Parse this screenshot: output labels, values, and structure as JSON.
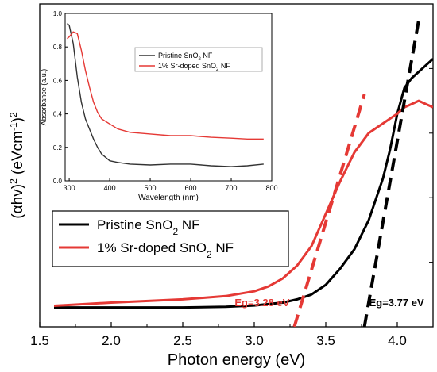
{
  "chart_data": [
    {
      "type": "line",
      "xlabel": "Photon energy (eV)",
      "ylabel": "(αhv)² (eVcm⁻¹)²",
      "xlim": [
        1.5,
        4.25
      ],
      "xticks": [
        "1.5",
        "2.0",
        "2.5",
        "3.0",
        "3.5",
        "4.0"
      ],
      "ylim": [
        0,
        1.0
      ],
      "yticks_labeled": false,
      "legend": {
        "placement": "center-left"
      },
      "series": [
        {
          "name": "Pristine SnO₂ NF",
          "color": "#000000",
          "points": [
            [
              1.6,
              0.06
            ],
            [
              2.0,
              0.06
            ],
            [
              2.5,
              0.06
            ],
            [
              2.8,
              0.062
            ],
            [
              3.0,
              0.066
            ],
            [
              3.2,
              0.075
            ],
            [
              3.3,
              0.085
            ],
            [
              3.4,
              0.1
            ],
            [
              3.5,
              0.13
            ],
            [
              3.6,
              0.18
            ],
            [
              3.7,
              0.24
            ],
            [
              3.8,
              0.33
            ],
            [
              3.9,
              0.46
            ],
            [
              3.95,
              0.55
            ],
            [
              4.0,
              0.66
            ],
            [
              4.05,
              0.74
            ],
            [
              4.1,
              0.77
            ],
            [
              4.15,
              0.79
            ],
            [
              4.2,
              0.81
            ],
            [
              4.25,
              0.83
            ]
          ]
        },
        {
          "name": "1% Sr-doped SnO₂ NF",
          "color": "#e53935",
          "points": [
            [
              1.6,
              0.065
            ],
            [
              2.0,
              0.075
            ],
            [
              2.5,
              0.085
            ],
            [
              2.8,
              0.095
            ],
            [
              3.0,
              0.11
            ],
            [
              3.1,
              0.125
            ],
            [
              3.2,
              0.15
            ],
            [
              3.3,
              0.19
            ],
            [
              3.4,
              0.25
            ],
            [
              3.5,
              0.35
            ],
            [
              3.6,
              0.45
            ],
            [
              3.7,
              0.54
            ],
            [
              3.8,
              0.6
            ],
            [
              3.9,
              0.63
            ],
            [
              4.0,
              0.66
            ],
            [
              4.05,
              0.68
            ],
            [
              4.1,
              0.69
            ],
            [
              4.15,
              0.7
            ],
            [
              4.2,
              0.69
            ],
            [
              4.25,
              0.68
            ]
          ]
        }
      ],
      "tangents": [
        {
          "color": "#e53935",
          "from": [
            3.28,
            0.0
          ],
          "to": [
            3.77,
            0.72
          ],
          "label": "Eg=3.28 eV"
        },
        {
          "color": "#000000",
          "from": [
            3.77,
            0.0
          ],
          "to": [
            4.15,
            0.95
          ],
          "label": "Eg=3.77 eV"
        }
      ]
    },
    {
      "type": "line",
      "inset": true,
      "xlabel": "Wavelength (nm)",
      "ylabel": "Absorbance (a.u.)",
      "xlim": [
        290,
        800
      ],
      "xticks": [
        "300",
        "400",
        "500",
        "600",
        "700",
        "800"
      ],
      "ylim": [
        0,
        1.0
      ],
      "yticks": [
        "0.0",
        "0.2",
        "0.4",
        "0.6",
        "0.8",
        "1.0"
      ],
      "legend": {
        "placement": "top-right"
      },
      "series": [
        {
          "name": "Pristine SnO₂ NF",
          "color": "#333333",
          "points": [
            [
              295,
              0.94
            ],
            [
              300,
              0.93
            ],
            [
              310,
              0.82
            ],
            [
              320,
              0.62
            ],
            [
              330,
              0.47
            ],
            [
              340,
              0.37
            ],
            [
              350,
              0.31
            ],
            [
              360,
              0.25
            ],
            [
              370,
              0.2
            ],
            [
              380,
              0.16
            ],
            [
              400,
              0.12
            ],
            [
              420,
              0.11
            ],
            [
              450,
              0.1
            ],
            [
              500,
              0.095
            ],
            [
              550,
              0.1
            ],
            [
              600,
              0.1
            ],
            [
              650,
              0.09
            ],
            [
              700,
              0.085
            ],
            [
              740,
              0.09
            ],
            [
              780,
              0.1
            ]
          ]
        },
        {
          "name": "1% Sr-doped SnO₂ NF",
          "color": "#e53935",
          "points": [
            [
              295,
              0.85
            ],
            [
              300,
              0.86
            ],
            [
              310,
              0.89
            ],
            [
              320,
              0.88
            ],
            [
              330,
              0.78
            ],
            [
              340,
              0.66
            ],
            [
              350,
              0.56
            ],
            [
              360,
              0.47
            ],
            [
              370,
              0.41
            ],
            [
              380,
              0.37
            ],
            [
              400,
              0.34
            ],
            [
              420,
              0.31
            ],
            [
              450,
              0.29
            ],
            [
              500,
              0.28
            ],
            [
              550,
              0.27
            ],
            [
              600,
              0.27
            ],
            [
              650,
              0.26
            ],
            [
              700,
              0.255
            ],
            [
              740,
              0.25
            ],
            [
              780,
              0.25
            ]
          ]
        }
      ]
    }
  ]
}
